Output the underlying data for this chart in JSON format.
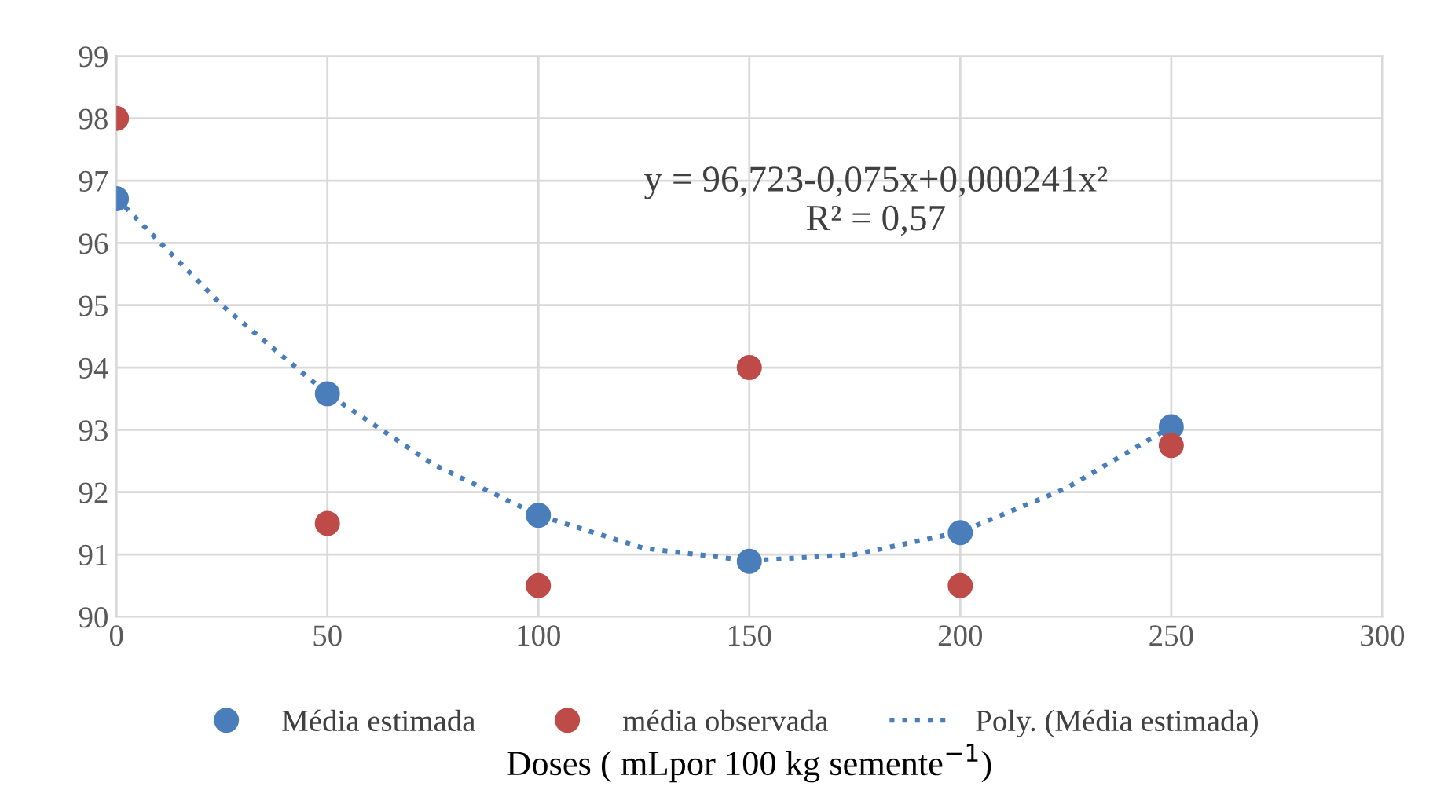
{
  "chart_data": {
    "type": "scatter",
    "xlabel": "Doses ( mLpor 100 kg semente$^{−1}$)",
    "xlim": [
      0,
      300
    ],
    "xticks": [
      0,
      50,
      100,
      150,
      200,
      250,
      300
    ],
    "ylim": [
      90,
      99
    ],
    "yticks": [
      90,
      91,
      92,
      93,
      94,
      95,
      96,
      97,
      98,
      99
    ],
    "grid": true,
    "legend": "bottom",
    "marker": "circle",
    "series": [
      {
        "name": "Média estimada",
        "color": "#4a7ebb",
        "x": [
          0,
          50,
          100,
          150,
          200,
          250
        ],
        "values": [
          96.71,
          93.58,
          91.63,
          90.89,
          91.35,
          93.05
        ]
      },
      {
        "name": "média observada",
        "color": "#be4b48",
        "x": [
          0,
          50,
          100,
          150,
          200,
          250
        ],
        "values": [
          98,
          91.5,
          90.5,
          94,
          90.5,
          92.75
        ]
      },
      {
        "name": "Poly. (Média estimada)",
        "type": "line",
        "line_style": "dotted",
        "marker": "none",
        "color": "#4a7ebb",
        "x": [
          0,
          25,
          50,
          75,
          100,
          125,
          150,
          175,
          200,
          225,
          250
        ],
        "values": [
          96.72,
          95.0,
          93.58,
          92.45,
          91.63,
          91.1,
          90.9,
          91.0,
          91.36,
          92.06,
          93.05
        ]
      }
    ],
    "annotations": [
      "y = 96,723-0,075x+0,000241x²\nR² = 0,57"
    ]
  }
}
